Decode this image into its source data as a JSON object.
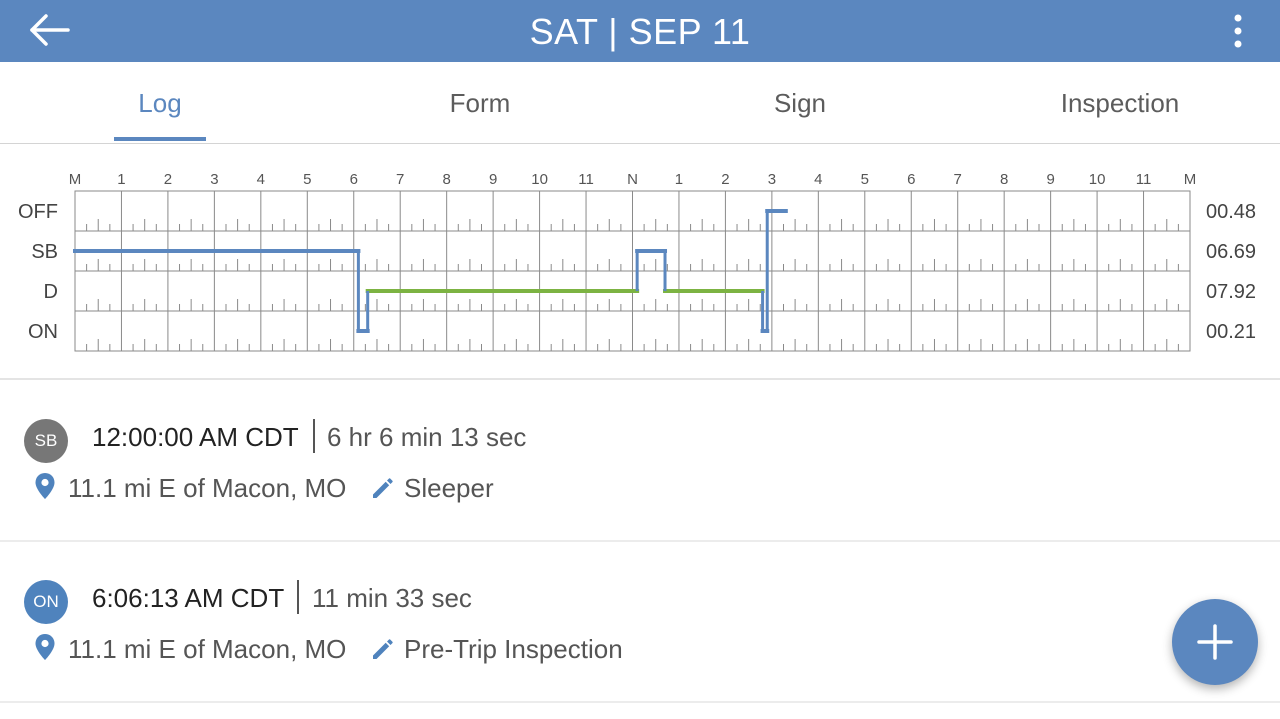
{
  "header": {
    "title": "SAT | SEP 11"
  },
  "tabs": [
    {
      "label": "Log",
      "active": true
    },
    {
      "label": "Form",
      "active": false
    },
    {
      "label": "Sign",
      "active": false
    },
    {
      "label": "Inspection",
      "active": false
    }
  ],
  "chart_data": {
    "type": "line",
    "hour_labels": [
      "M",
      "1",
      "2",
      "3",
      "4",
      "5",
      "6",
      "7",
      "8",
      "9",
      "10",
      "11",
      "N",
      "1",
      "2",
      "3",
      "4",
      "5",
      "6",
      "7",
      "8",
      "9",
      "10",
      "11",
      "M"
    ],
    "rows": [
      {
        "label": "OFF",
        "total": "00.48"
      },
      {
        "label": "SB",
        "total": "06.69"
      },
      {
        "label": "D",
        "total": "07.92"
      },
      {
        "label": "ON",
        "total": "00.21"
      }
    ],
    "segments": [
      {
        "status": "SB",
        "start": 0.0,
        "end": 6.1
      },
      {
        "status": "ON",
        "start": 6.1,
        "end": 6.3
      },
      {
        "status": "D",
        "start": 6.3,
        "end": 12.1
      },
      {
        "status": "SB",
        "start": 12.1,
        "end": 12.7
      },
      {
        "status": "D",
        "start": 12.7,
        "end": 14.8
      },
      {
        "status": "ON",
        "start": 14.8,
        "end": 14.9
      },
      {
        "status": "OFF",
        "start": 14.9,
        "end": 15.3
      }
    ],
    "colors": {
      "driving": "#7cb342",
      "other": "#5b87bf",
      "grid": "#8a8a8a"
    }
  },
  "entries": [
    {
      "badge": "SB",
      "time": "12:00:00 AM CDT",
      "duration": "6 hr 6 min 13 sec",
      "location": "11.1 mi E of Macon, MO",
      "note": "Sleeper"
    },
    {
      "badge": "ON",
      "time": "6:06:13 AM CDT",
      "duration": "11 min 33 sec",
      "location": "11.1 mi E of Macon, MO",
      "note": "Pre-Trip Inspection"
    }
  ],
  "icons": {
    "back": "arrow-left-icon",
    "menu": "more-vert-icon",
    "pin": "location-pin-icon",
    "edit": "pencil-icon",
    "add": "plus-icon"
  }
}
